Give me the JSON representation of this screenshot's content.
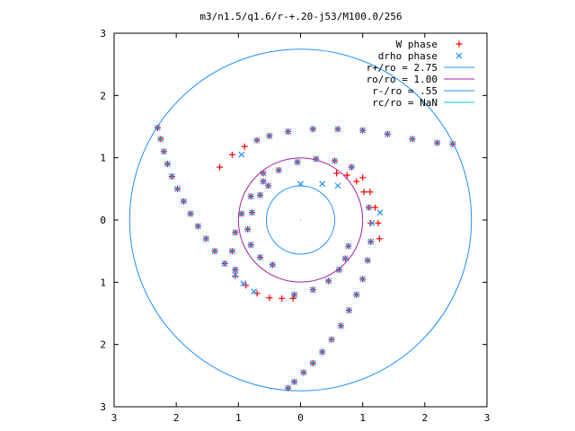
{
  "chart_data": {
    "type": "scatter",
    "title": "m3/n1.5/q1.6/r-+.20-j53/M100.0/256",
    "xlim": [
      -3,
      3
    ],
    "ylim": [
      -3,
      3
    ],
    "x_ticks": [
      -3,
      -2,
      -1,
      0,
      1,
      2,
      3
    ],
    "y_ticks": [
      -3,
      -2,
      -1,
      0,
      1,
      2,
      3
    ],
    "x_tick_labels": [
      "3",
      "2",
      "1",
      "0",
      "1",
      "2",
      "3"
    ],
    "y_tick_labels": [
      "3",
      "2",
      "1",
      "0",
      "1",
      "2",
      "3"
    ],
    "grid": false,
    "legend_position": "top-right",
    "legend": [
      {
        "label": "W phase",
        "kind": "point",
        "marker": "+",
        "color": "#ff0000"
      },
      {
        "label": "drho phase",
        "kind": "point",
        "marker": "x",
        "color": "#1e90ff"
      },
      {
        "label": "r+/ro = 2.75",
        "kind": "circle",
        "radius": 2.75,
        "color": "#1e90ff"
      },
      {
        "label": "ro/ro = 1.00",
        "kind": "circle",
        "radius": 1.0,
        "color": "#a020a0"
      },
      {
        "label": "r-/ro = .55",
        "kind": "circle",
        "radius": 0.55,
        "color": "#1e90ff"
      },
      {
        "label": "rc/ro = NaN",
        "kind": "circle",
        "radius": null,
        "color": "#00c8c8"
      }
    ],
    "series": [
      {
        "name": "W phase",
        "color": "#ff0000",
        "points": [
          [
            -2.3,
            1.48
          ],
          [
            -2.25,
            1.3
          ],
          [
            -2.2,
            1.1
          ],
          [
            -2.14,
            0.9
          ],
          [
            -2.07,
            0.7
          ],
          [
            -1.98,
            0.5
          ],
          [
            -1.88,
            0.3
          ],
          [
            -1.77,
            0.1
          ],
          [
            -1.65,
            -0.1
          ],
          [
            -1.52,
            -0.3
          ],
          [
            -1.38,
            -0.5
          ],
          [
            -1.22,
            -0.7
          ],
          [
            -1.05,
            -0.9
          ],
          [
            -0.88,
            -1.05
          ],
          [
            -0.7,
            -1.18
          ],
          [
            -0.5,
            -1.25
          ],
          [
            -0.3,
            -1.26
          ],
          [
            -0.12,
            -1.26
          ],
          [
            -0.2,
            -2.7
          ],
          [
            -0.1,
            -2.6
          ],
          [
            0.05,
            -2.45
          ],
          [
            0.2,
            -2.3
          ],
          [
            0.35,
            -2.12
          ],
          [
            0.5,
            -1.92
          ],
          [
            0.65,
            -1.7
          ],
          [
            0.78,
            -1.45
          ],
          [
            0.9,
            -1.2
          ],
          [
            1.0,
            -0.95
          ],
          [
            1.08,
            -0.65
          ],
          [
            1.13,
            -0.35
          ],
          [
            1.13,
            -0.05
          ],
          [
            1.1,
            0.2
          ],
          [
            1.02,
            0.45
          ],
          [
            0.9,
            0.62
          ],
          [
            0.75,
            0.72
          ],
          [
            0.58,
            0.75
          ],
          [
            -1.3,
            0.85
          ],
          [
            -1.1,
            1.05
          ],
          [
            -0.9,
            1.18
          ],
          [
            -0.7,
            1.28
          ],
          [
            -0.5,
            1.35
          ],
          [
            -0.2,
            1.42
          ],
          [
            0.2,
            1.46
          ],
          [
            0.6,
            1.46
          ],
          [
            1.0,
            1.44
          ],
          [
            1.4,
            1.38
          ],
          [
            1.8,
            1.3
          ],
          [
            2.2,
            1.24
          ],
          [
            2.45,
            1.22
          ],
          [
            -1.05,
            -0.8
          ],
          [
            -1.1,
            -0.5
          ],
          [
            -1.05,
            -0.2
          ],
          [
            -0.95,
            0.1
          ],
          [
            -0.8,
            0.38
          ],
          [
            -0.6,
            0.62
          ],
          [
            -0.35,
            0.8
          ],
          [
            -0.05,
            0.93
          ],
          [
            0.25,
            0.98
          ],
          [
            0.55,
            0.95
          ],
          [
            0.82,
            0.85
          ],
          [
            1.0,
            0.68
          ],
          [
            1.12,
            0.45
          ],
          [
            1.2,
            0.2
          ],
          [
            1.25,
            -0.05
          ],
          [
            1.27,
            -0.3
          ],
          [
            -0.45,
            -0.72
          ],
          [
            -0.65,
            -0.6
          ],
          [
            -0.8,
            -0.4
          ],
          [
            -0.85,
            -0.15
          ],
          [
            -0.78,
            0.12
          ],
          [
            -0.65,
            0.4
          ],
          [
            -0.52,
            0.55
          ],
          [
            -0.6,
            0.75
          ],
          [
            -0.1,
            -1.2
          ],
          [
            0.2,
            -1.12
          ],
          [
            0.45,
            -0.98
          ],
          [
            0.62,
            -0.8
          ],
          [
            0.72,
            -0.62
          ],
          [
            0.77,
            -0.42
          ]
        ]
      },
      {
        "name": "drho phase",
        "color": "#1e90ff",
        "points": [
          [
            -2.3,
            1.48
          ],
          [
            -2.25,
            1.3
          ],
          [
            -2.2,
            1.1
          ],
          [
            -2.14,
            0.9
          ],
          [
            -2.07,
            0.7
          ],
          [
            -1.98,
            0.5
          ],
          [
            -1.88,
            0.3
          ],
          [
            -1.77,
            0.1
          ],
          [
            -1.65,
            -0.1
          ],
          [
            -1.52,
            -0.3
          ],
          [
            -1.38,
            -0.5
          ],
          [
            -1.22,
            -0.7
          ],
          [
            -1.05,
            -0.88
          ],
          [
            -0.92,
            -1.02
          ],
          [
            -0.75,
            -1.15
          ],
          [
            -0.2,
            -2.7
          ],
          [
            -0.1,
            -2.6
          ],
          [
            0.05,
            -2.45
          ],
          [
            0.2,
            -2.3
          ],
          [
            0.35,
            -2.12
          ],
          [
            0.5,
            -1.92
          ],
          [
            0.65,
            -1.7
          ],
          [
            0.78,
            -1.45
          ],
          [
            0.9,
            -1.2
          ],
          [
            1.0,
            -0.95
          ],
          [
            1.08,
            -0.65
          ],
          [
            1.13,
            -0.35
          ],
          [
            1.15,
            -0.05
          ],
          [
            1.1,
            0.2
          ],
          [
            1.28,
            0.12
          ],
          [
            -0.95,
            1.05
          ],
          [
            -0.7,
            1.28
          ],
          [
            -0.5,
            1.35
          ],
          [
            -0.2,
            1.42
          ],
          [
            0.2,
            1.46
          ],
          [
            0.6,
            1.46
          ],
          [
            1.0,
            1.44
          ],
          [
            1.4,
            1.38
          ],
          [
            1.8,
            1.3
          ],
          [
            2.2,
            1.24
          ],
          [
            2.45,
            1.22
          ],
          [
            -1.05,
            -0.8
          ],
          [
            -1.1,
            -0.5
          ],
          [
            -1.05,
            -0.2
          ],
          [
            -0.95,
            0.1
          ],
          [
            -0.8,
            0.38
          ],
          [
            -0.6,
            0.62
          ],
          [
            -0.35,
            0.8
          ],
          [
            -0.05,
            0.93
          ],
          [
            0.25,
            0.98
          ],
          [
            0.55,
            0.95
          ],
          [
            0.82,
            0.85
          ],
          [
            -0.45,
            -0.72
          ],
          [
            -0.65,
            -0.6
          ],
          [
            -0.8,
            -0.4
          ],
          [
            -0.85,
            -0.15
          ],
          [
            -0.78,
            0.12
          ],
          [
            -0.65,
            0.4
          ],
          [
            -0.52,
            0.55
          ],
          [
            -0.6,
            0.75
          ],
          [
            -0.1,
            -1.2
          ],
          [
            0.2,
            -1.12
          ],
          [
            0.45,
            -0.98
          ],
          [
            0.62,
            -0.8
          ],
          [
            0.72,
            -0.62
          ],
          [
            0.77,
            -0.42
          ],
          [
            0.6,
            0.55
          ],
          [
            0.35,
            0.58
          ],
          [
            0.0,
            0.58
          ]
        ]
      }
    ]
  }
}
